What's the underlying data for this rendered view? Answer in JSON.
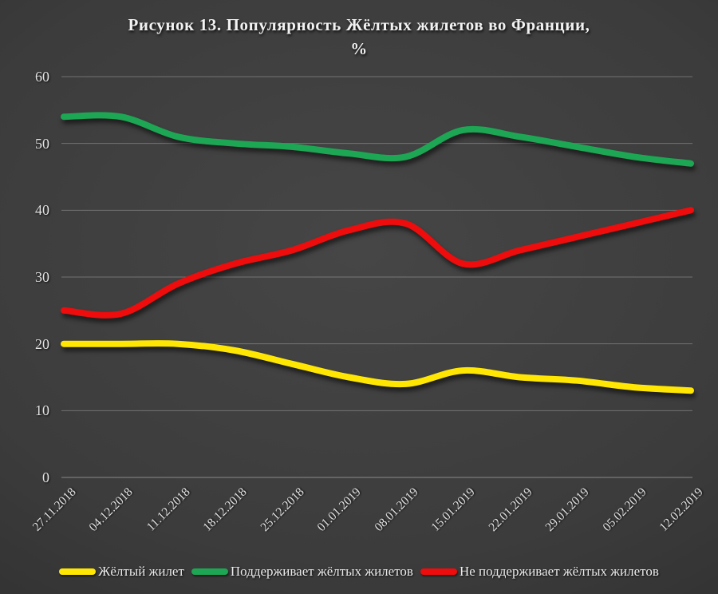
{
  "page": {
    "title_lines": [
      "Рисунок 13. Популярность Жёлтых жилетов во Франции,",
      "%"
    ]
  },
  "chart_data": {
    "type": "line",
    "title": "Рисунок 13. Популярность Жёлтых жилетов во Франции, %",
    "smoothed": true,
    "grid": "horizontal",
    "legend_position": "bottom",
    "ylim": [
      0,
      60
    ],
    "yticks": [
      0,
      10,
      20,
      30,
      40,
      50,
      60
    ],
    "categories": [
      "27.11.2018",
      "04.12.2018",
      "11.12.2018",
      "18.12.2018",
      "25.12.2018",
      "01.01.2019",
      "08.01.2019",
      "15.01.2019",
      "22.01.2019",
      "29.01.2019",
      "05.02.2019",
      "12.02.2019"
    ],
    "series": [
      {
        "name": "Жёлтый жилет",
        "color": "#ffe703",
        "values": [
          20,
          20,
          20,
          19,
          17,
          15,
          14,
          16,
          15,
          14.5,
          13.5,
          13
        ]
      },
      {
        "name": "Поддерживает жёлтых жилетов",
        "color": "#1da653",
        "values": [
          54,
          54,
          51,
          50,
          49.5,
          48.5,
          48,
          52,
          51,
          49.5,
          48,
          47
        ]
      },
      {
        "name": "Не поддерживает жёлтых жилетов",
        "color": "#ee0c0c",
        "values": [
          25,
          24.5,
          29,
          32,
          34,
          37,
          38,
          32,
          34,
          36,
          38,
          40
        ]
      }
    ]
  }
}
